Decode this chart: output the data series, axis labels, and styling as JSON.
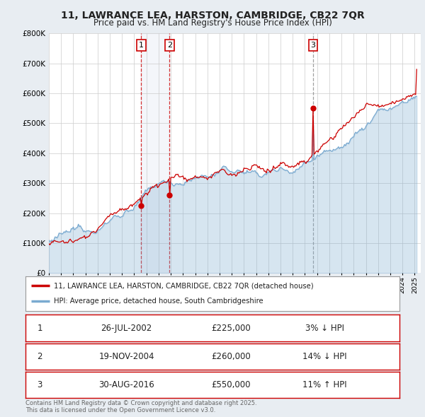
{
  "title_line1": "11, LAWRANCE LEA, HARSTON, CAMBRIDGE, CB22 7QR",
  "title_line2": "Price paid vs. HM Land Registry's House Price Index (HPI)",
  "legend_entries": [
    "11, LAWRANCE LEA, HARSTON, CAMBRIDGE, CB22 7QR (detached house)",
    "HPI: Average price, detached house, South Cambridgeshire"
  ],
  "legend_colors": [
    "#cc0000",
    "#7aaad0"
  ],
  "transactions": [
    {
      "num": 1,
      "date": "26-JUL-2002",
      "price": 225000,
      "year": 2002.57,
      "hpi_diff": "3% ↓ HPI"
    },
    {
      "num": 2,
      "date": "19-NOV-2004",
      "price": 260000,
      "year": 2004.89,
      "hpi_diff": "14% ↓ HPI"
    },
    {
      "num": 3,
      "date": "30-AUG-2016",
      "price": 550000,
      "year": 2016.67,
      "hpi_diff": "11% ↑ HPI"
    }
  ],
  "ylabel_ticks": [
    "£0",
    "£100K",
    "£200K",
    "£300K",
    "£400K",
    "£500K",
    "£600K",
    "£700K",
    "£800K"
  ],
  "ytick_values": [
    0,
    100000,
    200000,
    300000,
    400000,
    500000,
    600000,
    700000,
    800000
  ],
  "ylim": [
    0,
    800000
  ],
  "xlim_start": 1995,
  "xlim_end": 2025.5,
  "background_color": "#e8edf2",
  "plot_bg_color": "#ffffff",
  "grid_color": "#cccccc",
  "footnote": "Contains HM Land Registry data © Crown copyright and database right 2025.\nThis data is licensed under the Open Government Licence v3.0.",
  "t_years": [
    2002.57,
    2004.89,
    2016.67
  ],
  "t_prices": [
    225000,
    260000,
    550000
  ],
  "t_nums": [
    1,
    2,
    3
  ],
  "table_rows": [
    [
      1,
      "26-JUL-2002",
      "£225,000",
      "3% ↓ HPI"
    ],
    [
      2,
      "19-NOV-2004",
      "£260,000",
      "14% ↓ HPI"
    ],
    [
      3,
      "30-AUG-2016",
      "£550,000",
      "11% ↑ HPI"
    ]
  ]
}
